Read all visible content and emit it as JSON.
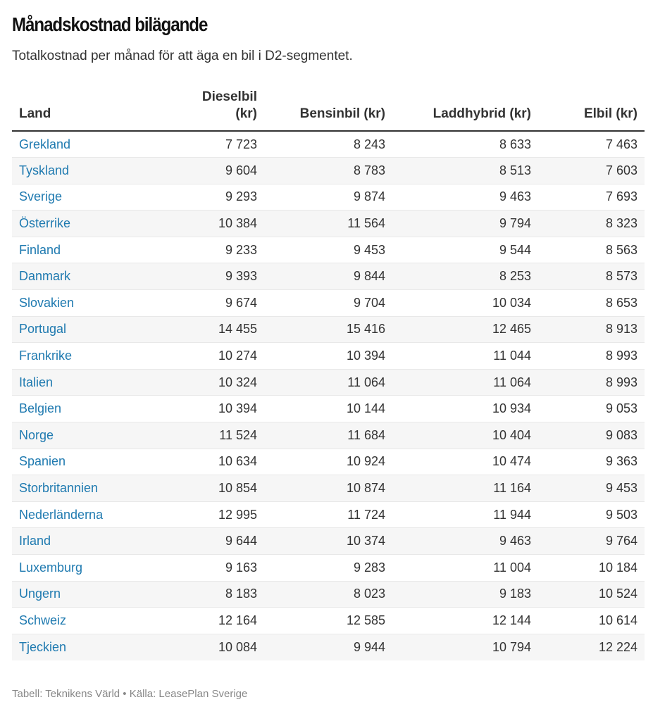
{
  "title": "Månadskostnad bilägande",
  "subtitle": "Totalkostnad per månad för att äga en bil i D2-segmentet.",
  "footer": "Tabell: Teknikens Värld • Källa: LeasePlan Sverige",
  "chart_data": {
    "type": "table",
    "title": "Månadskostnad bilägande",
    "subtitle": "Totalkostnad per månad för att äga en bil i D2-segmentet.",
    "columns": [
      "Land",
      "Dieselbil (kr)",
      "Bensinbil (kr)",
      "Laddhybrid (kr)",
      "Elbil (kr)"
    ],
    "rows": [
      [
        "Grekland",
        "7 723",
        "8 243",
        "8 633",
        "7 463"
      ],
      [
        "Tyskland",
        "9 604",
        "8 783",
        "8 513",
        "7 603"
      ],
      [
        "Sverige",
        "9 293",
        "9 874",
        "9 463",
        "7 693"
      ],
      [
        "Österrike",
        "10 384",
        "11 564",
        "9 794",
        "8 323"
      ],
      [
        "Finland",
        "9 233",
        "9 453",
        "9 544",
        "8 563"
      ],
      [
        "Danmark",
        "9 393",
        "9 844",
        "8 253",
        "8 573"
      ],
      [
        "Slovakien",
        "9 674",
        "9 704",
        "10 034",
        "8 653"
      ],
      [
        "Portugal",
        "14 455",
        "15 416",
        "12 465",
        "8 913"
      ],
      [
        "Frankrike",
        "10 274",
        "10 394",
        "11 044",
        "8 993"
      ],
      [
        "Italien",
        "10 324",
        "11 064",
        "11 064",
        "8 993"
      ],
      [
        "Belgien",
        "10 394",
        "10 144",
        "10 934",
        "9 053"
      ],
      [
        "Norge",
        "11 524",
        "11 684",
        "10 404",
        "9 083"
      ],
      [
        "Spanien",
        "10 634",
        "10 924",
        "10 474",
        "9 363"
      ],
      [
        "Storbritannien",
        "10 854",
        "10 874",
        "11 164",
        "9 453"
      ],
      [
        "Nederländerna",
        "12 995",
        "11 724",
        "11 944",
        "9 503"
      ],
      [
        "Irland",
        "9 644",
        "10 374",
        "9 463",
        "9 764"
      ],
      [
        "Luxemburg",
        "9 163",
        "9 283",
        "11 004",
        "10 184"
      ],
      [
        "Ungern",
        "8 183",
        "8 023",
        "9 183",
        "10 524"
      ],
      [
        "Schweiz",
        "12 164",
        "12 585",
        "12 144",
        "10 614"
      ],
      [
        "Tjeckien",
        "10 084",
        "9 944",
        "10 794",
        "12 224"
      ]
    ],
    "source": "LeasePlan Sverige"
  }
}
